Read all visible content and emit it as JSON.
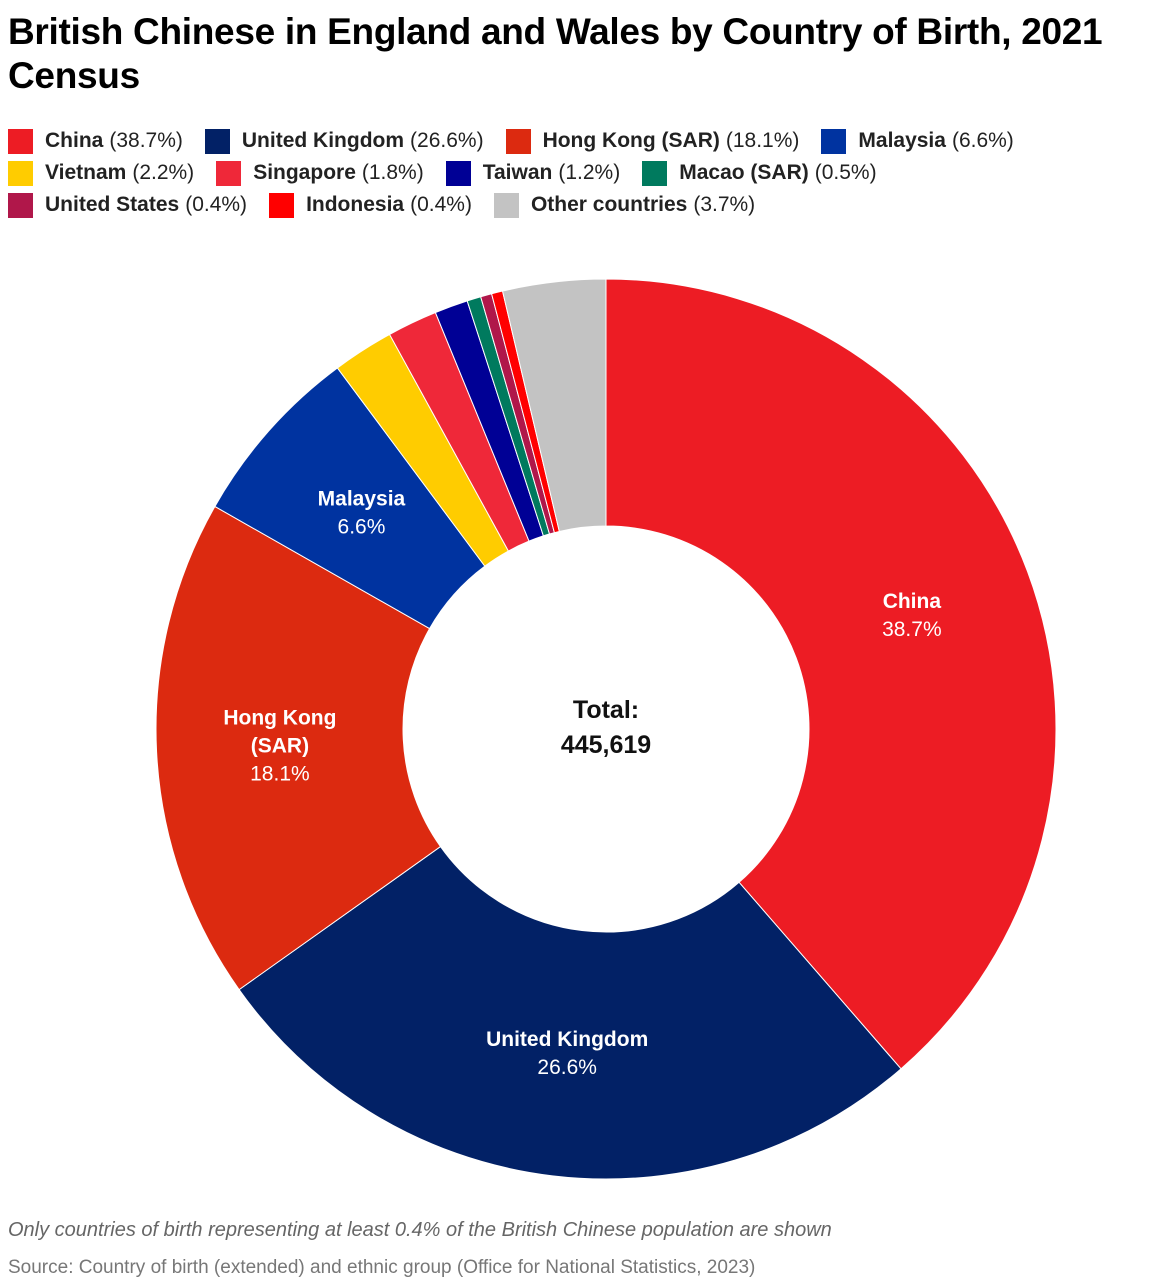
{
  "chart_data": {
    "type": "pie",
    "title": "British Chinese in England and Wales by Country of Birth, 2021 Census",
    "center_label": "Total:",
    "center_value": "445,619",
    "slices": [
      {
        "name": "China",
        "pct": 38.7,
        "label": "38.7%",
        "legend": "(38.7%)",
        "color": "#ed1c24",
        "show_label": true
      },
      {
        "name": "United Kingdom",
        "pct": 26.6,
        "label": "26.6%",
        "legend": "(26.6%)",
        "color": "#022166",
        "show_label": true
      },
      {
        "name": "Hong Kong (SAR)",
        "pct": 18.1,
        "label": "18.1%",
        "legend": "(18.1%)",
        "color": "#dc2a10",
        "show_label": true
      },
      {
        "name": "Malaysia",
        "pct": 6.6,
        "label": "6.6%",
        "legend": "(6.6%)",
        "color": "#0033a0",
        "show_label": true
      },
      {
        "name": "Vietnam",
        "pct": 2.2,
        "label": "2.2%",
        "legend": "(2.2%)",
        "color": "#ffcc00",
        "show_label": false
      },
      {
        "name": "Singapore",
        "pct": 1.8,
        "label": "1.8%",
        "legend": "(1.8%)",
        "color": "#ef2839",
        "show_label": false
      },
      {
        "name": "Taiwan",
        "pct": 1.2,
        "label": "1.2%",
        "legend": "(1.2%)",
        "color": "#000095",
        "show_label": false
      },
      {
        "name": "Macao (SAR)",
        "pct": 0.5,
        "label": "0.5%",
        "legend": "(0.5%)",
        "color": "#007a5e",
        "show_label": false
      },
      {
        "name": "United States",
        "pct": 0.4,
        "label": "0.4%",
        "legend": "(0.4%)",
        "color": "#b0174a",
        "show_label": false
      },
      {
        "name": "Indonesia",
        "pct": 0.4,
        "label": "0.4%",
        "legend": "(0.4%)",
        "color": "#ff0000",
        "show_label": false
      },
      {
        "name": "Other countries",
        "pct": 3.7,
        "label": "3.7%",
        "legend": "(3.7%)",
        "color": "#c3c3c3",
        "show_label": false
      }
    ],
    "slice_labels": {
      "China": [
        "China"
      ],
      "United Kingdom": [
        "United Kingdom"
      ],
      "Hong Kong (SAR)": [
        "Hong Kong",
        "(SAR)"
      ],
      "Malaysia": [
        "Malaysia"
      ]
    },
    "legend_rows": [
      [
        0,
        1,
        2,
        3
      ],
      [
        4,
        5,
        6,
        7
      ],
      [
        8,
        9,
        10
      ]
    ]
  },
  "notes": {
    "footnote": "Only countries of birth representing at least 0.4% of the British Chinese population are shown",
    "source": "Source: Country of birth (extended) and ethnic group (Office for National Statistics, 2023)"
  }
}
